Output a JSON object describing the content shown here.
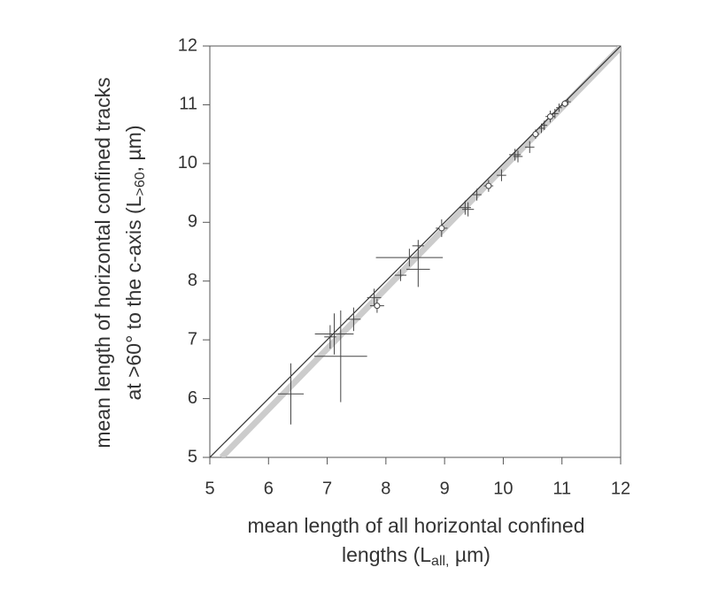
{
  "chart_data": {
    "type": "scatter",
    "x_label": {
      "line1": "mean length of all horizontal confined",
      "line2": "lengths (L",
      "sub": "all,",
      "after": " µm)"
    },
    "y_label": {
      "line1": "mean length of horizontal confined tracks",
      "line2": "at >60° to the c-axis (L",
      "sub": ">60",
      "after": ", µm)"
    },
    "xlim": [
      5,
      12
    ],
    "ylim": [
      5,
      12
    ],
    "xticks": [
      5,
      6,
      7,
      8,
      9,
      10,
      11,
      12
    ],
    "yticks": [
      5,
      6,
      7,
      8,
      9,
      10,
      11,
      12
    ],
    "lines": [
      {
        "x": [
          5.2,
          12
        ],
        "y": [
          5,
          11.98
        ],
        "color": "#cccccc",
        "style": "thick"
      },
      {
        "x": [
          5,
          12
        ],
        "y": [
          5,
          12
        ],
        "color": "#333333",
        "style": "thin"
      }
    ],
    "series": [
      {
        "marker": "cross",
        "color": "#444444",
        "x": [
          6.38,
          7.05,
          7.12,
          7.23,
          7.45,
          7.8,
          8.25,
          8.4,
          8.55,
          8.55,
          9.35,
          9.4,
          9.55,
          9.97,
          10.2,
          10.25,
          10.45,
          10.65,
          10.7,
          10.88,
          10.95,
          11.1
        ],
        "y": [
          6.08,
          7.05,
          7.1,
          6.72,
          7.35,
          7.72,
          8.1,
          8.4,
          8.2,
          8.6,
          9.25,
          9.22,
          9.47,
          9.8,
          10.15,
          10.12,
          10.28,
          10.6,
          10.65,
          10.85,
          10.95,
          11.05
        ],
        "xerr": [
          0.22,
          0.1,
          0.33,
          0.45,
          0.12,
          0.12,
          0.1,
          0.57,
          0.2,
          0.1,
          0.1,
          0.1,
          0.08,
          0.08,
          0.1,
          0.08,
          0.08,
          0.06,
          0.05,
          0.06,
          0.05,
          0.05
        ],
        "yerr": [
          0.52,
          0.2,
          0.35,
          0.78,
          0.2,
          0.15,
          0.1,
          0.15,
          0.3,
          0.1,
          0.12,
          0.12,
          0.1,
          0.1,
          0.1,
          0.1,
          0.1,
          0.08,
          0.08,
          0.08,
          0.07,
          0.05
        ]
      },
      {
        "marker": "circle",
        "color": "#444444",
        "x": [
          7.85,
          8.95,
          9.75,
          10.55,
          10.8,
          11.05
        ],
        "y": [
          7.58,
          8.9,
          9.62,
          10.5,
          10.8,
          11.02
        ],
        "xerr": [
          0.12,
          0.1,
          0.08,
          0.06,
          0.08,
          0.06
        ],
        "yerr": [
          0.12,
          0.15,
          0.1,
          0.08,
          0.1,
          0.06
        ]
      }
    ]
  }
}
